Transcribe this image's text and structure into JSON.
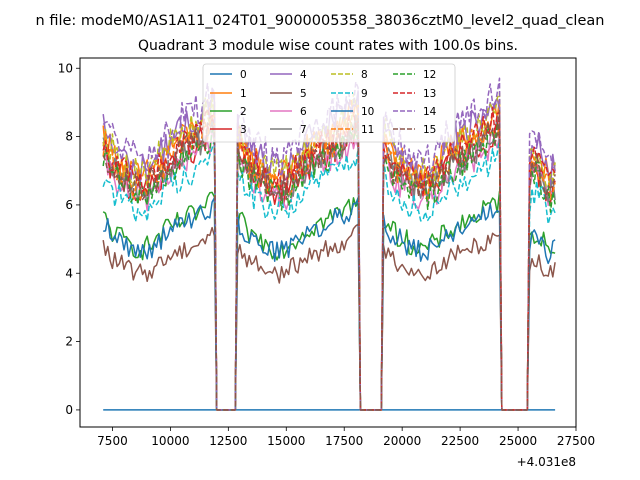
{
  "figure": {
    "suptitle": "n file: modeM0/AS1A11_024T01_9000005358_38036cztM0_level2_quad_clean",
    "title": "Quadrant 3 module wise count rates with 100.0s bins."
  },
  "chart_data": {
    "type": "line",
    "title": "Quadrant 3 module wise count rates with 100.0s bins.",
    "xlabel": "",
    "ylabel": "",
    "x_offset_label": "+4.031e8",
    "xlim": [
      6100,
      27500
    ],
    "ylim": [
      -0.5,
      10.3
    ],
    "xticks": [
      7500,
      10000,
      12500,
      15000,
      17500,
      20000,
      22500,
      25000,
      27500
    ],
    "xtick_labels": [
      "7500",
      "10000",
      "12500",
      "15000",
      "17500",
      "20000",
      "22500",
      "25000",
      "27500"
    ],
    "yticks": [
      0,
      2,
      4,
      6,
      8,
      10
    ],
    "ytick_labels": [
      "0",
      "2",
      "4",
      "6",
      "8",
      "10"
    ],
    "grid": false,
    "legend": {
      "placement": "top-center",
      "columns": 4
    },
    "x_start": 7100,
    "x_end": 26600,
    "bin_seconds": 100,
    "gaps": [
      [
        11900,
        12900
      ],
      [
        18100,
        19200
      ],
      [
        24200,
        25500
      ]
    ],
    "segment_trends": [
      {
        "x": [
          7100,
          11900
        ],
        "shape": "start-dip-rise"
      },
      {
        "x": [
          12900,
          18100
        ],
        "shape": "start-dip-rise"
      },
      {
        "x": [
          19200,
          24200
        ],
        "shape": "start-dip-rise"
      },
      {
        "x": [
          25500,
          26600
        ],
        "shape": "short"
      }
    ],
    "series": [
      {
        "name": "0",
        "color": "#1f77b4",
        "dash": "solid",
        "level": 0.0
      },
      {
        "name": "1",
        "color": "#ff7f0e",
        "dash": "solid",
        "level": 7.5
      },
      {
        "name": "2",
        "color": "#2ca02c",
        "dash": "solid",
        "level": 5.2
      },
      {
        "name": "3",
        "color": "#d62728",
        "dash": "solid",
        "level": 7.0
      },
      {
        "name": "4",
        "color": "#9467bd",
        "dash": "solid",
        "level": 7.7
      },
      {
        "name": "5",
        "color": "#8c564b",
        "dash": "solid",
        "level": 4.4
      },
      {
        "name": "6",
        "color": "#e377c2",
        "dash": "solid",
        "level": 6.8
      },
      {
        "name": "7",
        "color": "#7f7f7f",
        "dash": "solid",
        "level": 7.0
      },
      {
        "name": "8",
        "color": "#bcbd22",
        "dash": "dashed",
        "level": 7.6
      },
      {
        "name": "9",
        "color": "#17becf",
        "dash": "dashed",
        "level": 6.4
      },
      {
        "name": "10",
        "color": "#1f77b4",
        "dash": "solid",
        "level": 5.1
      },
      {
        "name": "11",
        "color": "#ff7f0e",
        "dash": "dashed",
        "level": 7.2
      },
      {
        "name": "12",
        "color": "#2ca02c",
        "dash": "dashed",
        "level": 6.9
      },
      {
        "name": "13",
        "color": "#d62728",
        "dash": "dashed",
        "level": 7.3
      },
      {
        "name": "14",
        "color": "#9467bd",
        "dash": "dashed",
        "level": 8.0
      },
      {
        "name": "15",
        "color": "#8c564b",
        "dash": "dashed",
        "level": 7.1
      }
    ]
  }
}
